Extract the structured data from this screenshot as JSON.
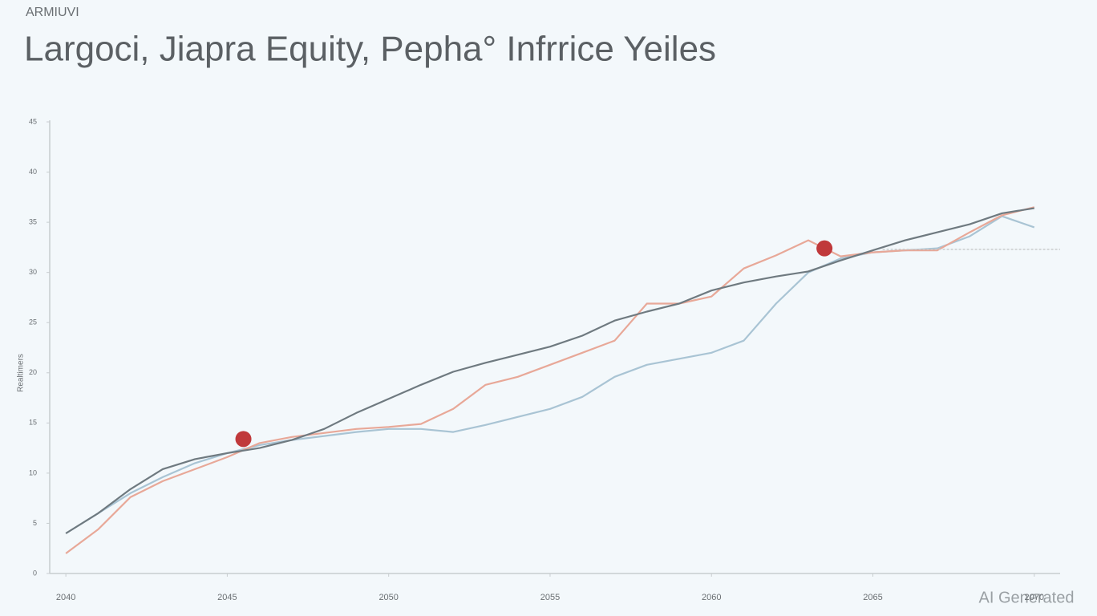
{
  "chart_data": {
    "type": "line",
    "subtitle": "ARMIUVI",
    "title": "Largoci, Jiapra Equity, Pepha° Infrrice Yeiles",
    "y_label": "Realtimers",
    "watermark": "AI Generated",
    "x": [
      2040,
      2041,
      2042,
      2043,
      2044,
      2045,
      2046,
      2047,
      2048,
      2049,
      2050,
      2051,
      2052,
      2053,
      2054,
      2055,
      2056,
      2057,
      2058,
      2059,
      2060,
      2061,
      2062,
      2063,
      2064,
      2065,
      2066,
      2067,
      2068,
      2069,
      2070
    ],
    "xlim": [
      2039.5,
      2070.8
    ],
    "xticks": [
      2040,
      2045,
      2050,
      2055,
      2060,
      2065,
      2070
    ],
    "ylim": [
      0,
      45
    ],
    "yticks": [
      0,
      5,
      10,
      15,
      20,
      25,
      30,
      35,
      40,
      45
    ],
    "grid": false,
    "series": [
      {
        "color": "#a9c4d4",
        "values": [
          4.0,
          6.0,
          8.0,
          9.6,
          11.0,
          12.0,
          12.8,
          13.3,
          13.7,
          14.1,
          14.4,
          14.4,
          14.1,
          14.8,
          15.6,
          16.4,
          17.6,
          19.6,
          20.8,
          21.4,
          22.0,
          23.2,
          26.9,
          30.0,
          31.4,
          32.0,
          32.2,
          32.4,
          33.6,
          35.6,
          34.5
        ]
      },
      {
        "color": "#e8a898",
        "values": [
          2.0,
          4.4,
          7.6,
          9.2,
          10.4,
          11.6,
          13.0,
          13.6,
          14.0,
          14.4,
          14.6,
          14.9,
          16.4,
          18.8,
          19.6,
          20.8,
          22.0,
          23.2,
          26.9,
          26.9,
          27.6,
          30.4,
          31.7,
          33.2,
          31.6,
          32.0,
          32.2,
          32.2,
          34.0,
          35.7,
          36.5
        ]
      },
      {
        "color": "#6f7a80",
        "values": [
          4.0,
          6.0,
          8.4,
          10.4,
          11.4,
          12.0,
          12.5,
          13.3,
          14.4,
          16.0,
          17.4,
          18.8,
          20.1,
          21.0,
          21.8,
          22.6,
          23.7,
          25.2,
          26.1,
          26.9,
          28.2,
          29.0,
          29.6,
          30.1,
          31.2,
          32.2,
          33.2,
          34.0,
          34.8,
          35.9,
          36.4
        ]
      }
    ],
    "reference": {
      "value": 32.3,
      "from": 2065.3,
      "color": "#c9cccd"
    },
    "markers": [
      {
        "x": 2045.5,
        "y": 13.4,
        "color": "#c0393b"
      },
      {
        "x": 2063.5,
        "y": 32.4,
        "color": "#c0393b"
      }
    ]
  }
}
